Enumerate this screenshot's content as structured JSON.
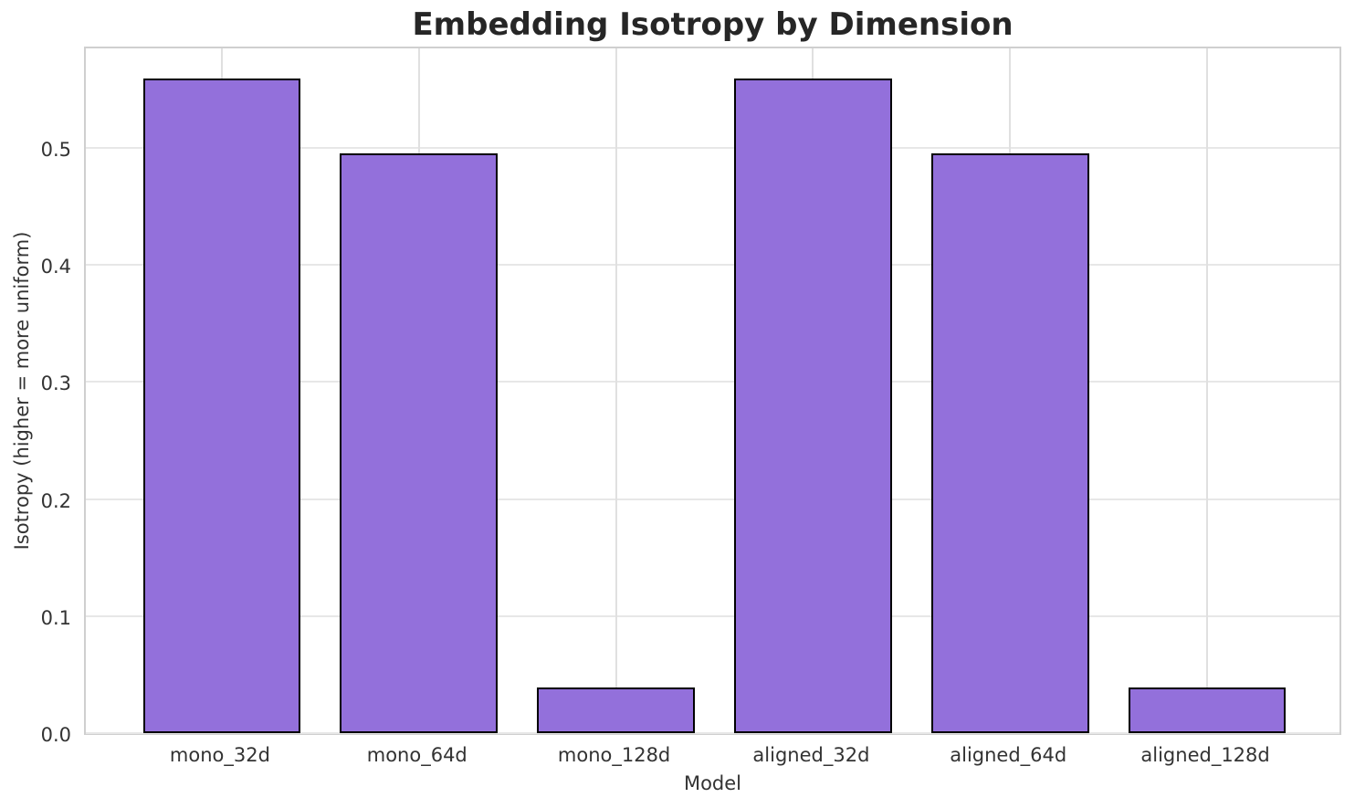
{
  "chart_data": {
    "type": "bar",
    "title": "Embedding Isotropy by Dimension",
    "xlabel": "Model",
    "ylabel": "Isotropy (higher = more uniform)",
    "categories": [
      "mono_32d",
      "mono_64d",
      "mono_128d",
      "aligned_32d",
      "aligned_64d",
      "aligned_128d"
    ],
    "values": [
      0.559,
      0.495,
      0.039,
      0.559,
      0.495,
      0.039
    ],
    "yticks": [
      0,
      0.1,
      0.2,
      0.3,
      0.4,
      0.5
    ],
    "ytick_labels": [
      "0.0",
      "0.1",
      "0.2",
      "0.3",
      "0.4",
      "0.5"
    ],
    "ylim": [
      0,
      0.588
    ],
    "xlim": [
      -0.69,
      5.69
    ],
    "bar_width": 0.8,
    "grid": true,
    "legend": "none",
    "colors": {
      "bar_fill": "#9370DB",
      "bar_edge": "#000000",
      "h_grid": "#e7e7e7",
      "v_grid": "#e0e0e0",
      "axis_edge": "#cfcfcf",
      "text": "#262626"
    }
  }
}
